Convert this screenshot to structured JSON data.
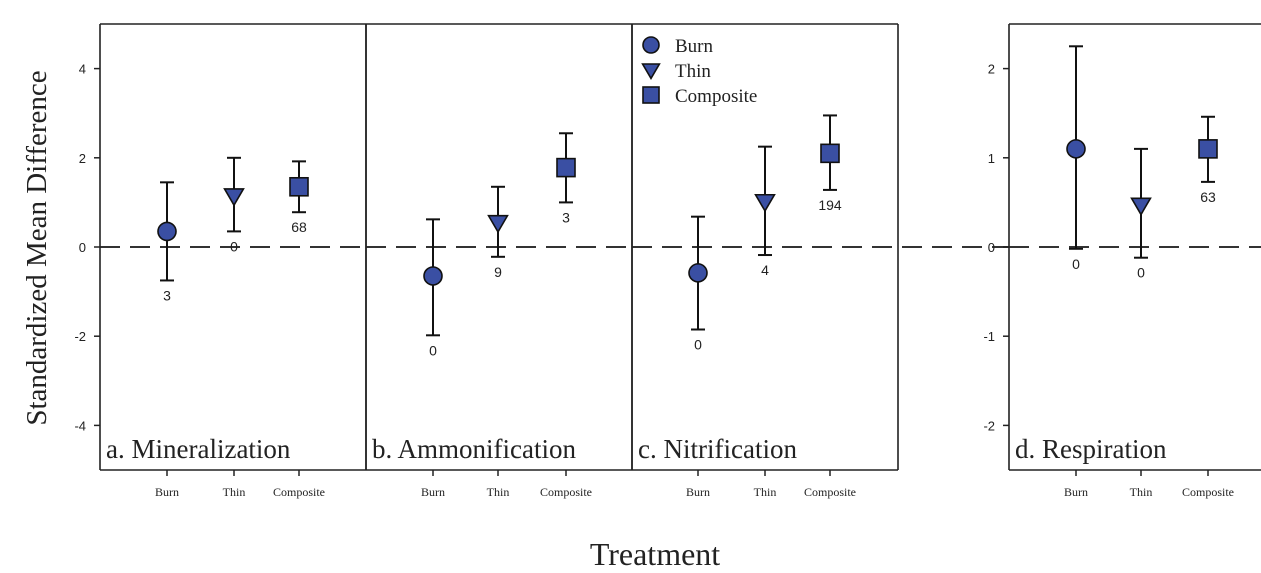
{
  "chart_data": {
    "type": "scatter",
    "ylabel": "Standardized Mean Difference",
    "xlabel": "Treatment",
    "categories": [
      "Burn",
      "Thin",
      "Composite"
    ],
    "legend": {
      "placement": "top-left of panel c",
      "entries": [
        {
          "name": "Burn",
          "marker": "circle"
        },
        {
          "name": "Thin",
          "marker": "triangle-down"
        },
        {
          "name": "Composite",
          "marker": "square"
        }
      ]
    },
    "marker_color": "#3a4fa3",
    "reference_line": {
      "y": 0,
      "style": "dashed"
    },
    "groups": [
      {
        "title": "a. Mineralization",
        "ylim": [
          -5,
          5
        ],
        "yticks": [
          -4,
          -2,
          0,
          2,
          4
        ],
        "points": [
          {
            "category": "Burn",
            "marker": "circle",
            "y": 0.35,
            "ci": [
              -0.75,
              1.45
            ],
            "n": "3"
          },
          {
            "category": "Thin",
            "marker": "triangle-down",
            "y": 1.15,
            "ci": [
              0.35,
              2.0
            ],
            "n": "0"
          },
          {
            "category": "Composite",
            "marker": "square",
            "y": 1.35,
            "ci": [
              0.78,
              1.92
            ],
            "n": "68"
          }
        ]
      },
      {
        "title": "b. Ammonification",
        "ylim": [
          -5,
          5
        ],
        "yticks": [],
        "points": [
          {
            "category": "Burn",
            "marker": "circle",
            "y": -0.65,
            "ci": [
              -1.98,
              0.62
            ],
            "n": "0"
          },
          {
            "category": "Thin",
            "marker": "triangle-down",
            "y": 0.55,
            "ci": [
              -0.22,
              1.35
            ],
            "n": "9"
          },
          {
            "category": "Composite",
            "marker": "square",
            "y": 1.78,
            "ci": [
              1.0,
              2.55
            ],
            "n": "3"
          }
        ]
      },
      {
        "title": "c. Nitrification",
        "ylim": [
          -5,
          5
        ],
        "yticks": [],
        "points": [
          {
            "category": "Burn",
            "marker": "circle",
            "y": -0.58,
            "ci": [
              -1.85,
              0.68
            ],
            "n": "0"
          },
          {
            "category": "Thin",
            "marker": "triangle-down",
            "y": 1.02,
            "ci": [
              -0.18,
              2.25
            ],
            "n": "4"
          },
          {
            "category": "Composite",
            "marker": "square",
            "y": 2.1,
            "ci": [
              1.28,
              2.95
            ],
            "n": "194"
          }
        ]
      },
      {
        "title": "d. Respiration",
        "ylim": [
          -2.5,
          2.5
        ],
        "yticks": [
          -2,
          -1,
          0,
          1,
          2
        ],
        "points": [
          {
            "category": "Burn",
            "marker": "circle",
            "y": 1.1,
            "ci": [
              -0.02,
              2.25
            ],
            "n": "0"
          },
          {
            "category": "Thin",
            "marker": "triangle-down",
            "y": 0.47,
            "ci": [
              -0.12,
              1.1
            ],
            "n": "0"
          },
          {
            "category": "Composite",
            "marker": "square",
            "y": 1.1,
            "ci": [
              0.73,
              1.46
            ],
            "n": "63"
          }
        ]
      }
    ]
  }
}
